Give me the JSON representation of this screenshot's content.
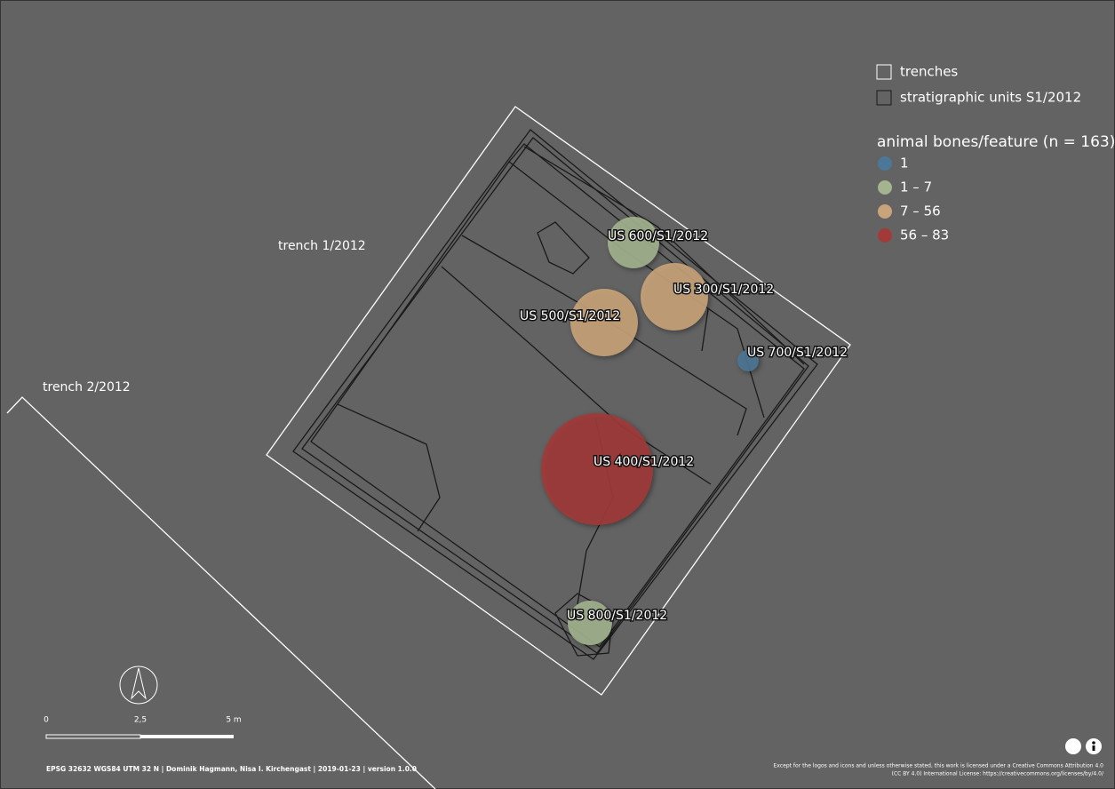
{
  "legend": {
    "items": [
      {
        "label": "trenches"
      },
      {
        "label": "stratigraphic units S1/2012"
      }
    ],
    "title": "animal bones/feature (n = 163)",
    "classes": [
      {
        "label": "1",
        "color": "#4d7796"
      },
      {
        "label": "1 – 7",
        "color": "#a3b48f"
      },
      {
        "label": "7 – 56",
        "color": "#c9a47a"
      },
      {
        "label": "56 – 83",
        "color": "#a33a3a"
      }
    ]
  },
  "map_labels": {
    "trench_1": "trench 1/2012",
    "trench_2": "trench 2/2012"
  },
  "features": [
    {
      "label": "US 600/S1/2012",
      "color": "#a3b48f"
    },
    {
      "label": "US 300/S1/2012",
      "color": "#c9a47a"
    },
    {
      "label": "US 500/S1/2012",
      "color": "#c9a47a"
    },
    {
      "label": "US 700/S1/2012",
      "color": "#4d7796"
    },
    {
      "label": "US 400/S1/2012",
      "color": "#a33a3a"
    },
    {
      "label": "US 800/S1/2012",
      "color": "#a3b48f"
    }
  ],
  "scale_bar": {
    "ticks": [
      "0",
      "2,5",
      "5 m"
    ]
  },
  "footer": {
    "credits": "EPSG 32632 WGS84 UTM 32 N | Dominik Hagmann, Nisa I. Kirchengast | 2019-01-23 | version 1.0.0",
    "license_line1": "Except for the logos and icons and unless otherwise stated, this work is licensed under a Creative Commons Attribution 4.0",
    "license_line2": "(CC BY 4.0) International License: https://creativecommons.org/licenses/by/4.0/"
  }
}
